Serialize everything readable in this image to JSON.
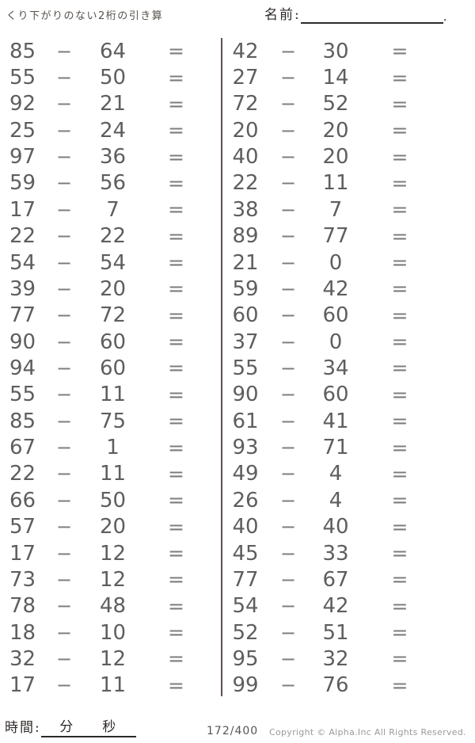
{
  "header": {
    "title": "くり下がりのない2桁の引き算",
    "name_label": "名前:",
    "name_suffix": "."
  },
  "problems": {
    "operator": "−",
    "equals": "=",
    "left": [
      {
        "a": 85,
        "b": 64
      },
      {
        "a": 55,
        "b": 50
      },
      {
        "a": 92,
        "b": 21
      },
      {
        "a": 25,
        "b": 24
      },
      {
        "a": 97,
        "b": 36
      },
      {
        "a": 59,
        "b": 56
      },
      {
        "a": 17,
        "b": 7
      },
      {
        "a": 22,
        "b": 22
      },
      {
        "a": 54,
        "b": 54
      },
      {
        "a": 39,
        "b": 20
      },
      {
        "a": 77,
        "b": 72
      },
      {
        "a": 90,
        "b": 60
      },
      {
        "a": 94,
        "b": 60
      },
      {
        "a": 55,
        "b": 11
      },
      {
        "a": 85,
        "b": 75
      },
      {
        "a": 67,
        "b": 1
      },
      {
        "a": 22,
        "b": 11
      },
      {
        "a": 66,
        "b": 50
      },
      {
        "a": 57,
        "b": 20
      },
      {
        "a": 17,
        "b": 12
      },
      {
        "a": 73,
        "b": 12
      },
      {
        "a": 78,
        "b": 48
      },
      {
        "a": 18,
        "b": 10
      },
      {
        "a": 32,
        "b": 12
      },
      {
        "a": 17,
        "b": 11
      }
    ],
    "right": [
      {
        "a": 42,
        "b": 30
      },
      {
        "a": 27,
        "b": 14
      },
      {
        "a": 72,
        "b": 52
      },
      {
        "a": 20,
        "b": 20
      },
      {
        "a": 40,
        "b": 20
      },
      {
        "a": 22,
        "b": 11
      },
      {
        "a": 38,
        "b": 7
      },
      {
        "a": 89,
        "b": 77
      },
      {
        "a": 21,
        "b": 0
      },
      {
        "a": 59,
        "b": 42
      },
      {
        "a": 60,
        "b": 60
      },
      {
        "a": 37,
        "b": 0
      },
      {
        "a": 55,
        "b": 34
      },
      {
        "a": 90,
        "b": 60
      },
      {
        "a": 61,
        "b": 41
      },
      {
        "a": 93,
        "b": 71
      },
      {
        "a": 49,
        "b": 4
      },
      {
        "a": 26,
        "b": 4
      },
      {
        "a": 40,
        "b": 40
      },
      {
        "a": 45,
        "b": 33
      },
      {
        "a": 77,
        "b": 67
      },
      {
        "a": 54,
        "b": 42
      },
      {
        "a": 52,
        "b": 51
      },
      {
        "a": 95,
        "b": 32
      },
      {
        "a": 99,
        "b": 76
      }
    ]
  },
  "footer": {
    "time_label": "時間:",
    "minutes_label": "分",
    "seconds_label": "秒",
    "page": "172/400",
    "copyright": "Copyright ©  Alpha.Inc All Rights Reserved."
  },
  "colors": {
    "digit": "#5e5e5e",
    "operator": "#7d7d7d",
    "divider": "#5a5050",
    "ink": "#2e2a28"
  }
}
